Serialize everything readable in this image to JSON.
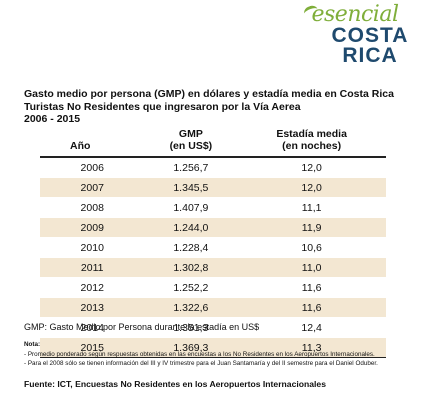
{
  "logo": {
    "script_text": "esencial",
    "line1": "COSTA",
    "line2": "RICA"
  },
  "title": {
    "line1": "Gasto medio por persona (GMP) en dólares y estadía media en Costa Rica",
    "line2": "Turistas No Residentes que ingresaron por la Vía Aerea",
    "line3": "2006 - 2015"
  },
  "table": {
    "headers": {
      "year": "Año",
      "gmp_l1": "GMP",
      "gmp_l2": "(en US$)",
      "stay_l1": "Estadía media",
      "stay_l2": "(en noches)"
    },
    "rows": [
      {
        "year": "2006",
        "gmp": "1.256,7",
        "stay": "12,0"
      },
      {
        "year": "2007",
        "gmp": "1.345,5",
        "stay": "12,0"
      },
      {
        "year": "2008",
        "gmp": "1.407,9",
        "stay": "11,1"
      },
      {
        "year": "2009",
        "gmp": "1.244,0",
        "stay": "11,9"
      },
      {
        "year": "2010",
        "gmp": "1.228,4",
        "stay": "10,6"
      },
      {
        "year": "2011",
        "gmp": "1.302,8",
        "stay": "11,0"
      },
      {
        "year": "2012",
        "gmp": "1.252,2",
        "stay": "11,6"
      },
      {
        "year": "2013",
        "gmp": "1.322,6",
        "stay": "11,6"
      },
      {
        "year": "2014",
        "gmp": "1.351,3",
        "stay": "12,4"
      },
      {
        "year": "2015",
        "gmp": "1.369,3",
        "stay": "11,3"
      }
    ]
  },
  "gmp_note": "GMP: Gasto Medio por Persona durante la estadía en US$",
  "nota": {
    "title": "Nota:",
    "line1": "- Promedio ponderado según respuestas obtenidas en las encuestas a los No Residentes en los Aeropuertos Internacionales.",
    "line2": "- Para el 2008 sólo se tienen información del III y IV trimestre para el Juan Santamaría y del II semestre para el Daniel Oduber."
  },
  "source": "Fuente: ICT, Encuestas No Residentes en los Aeropuertos Internacionales"
}
